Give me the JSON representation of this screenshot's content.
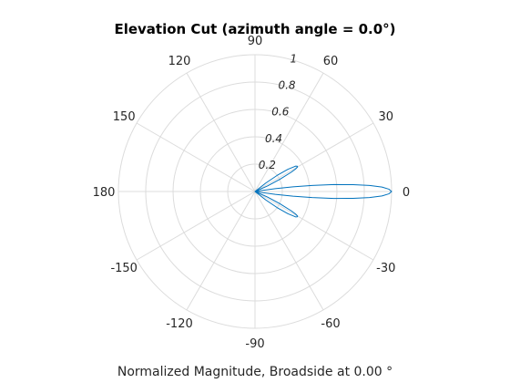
{
  "chart_data": {
    "type": "line",
    "title": "Elevation Cut (azimuth angle = 0.0°)",
    "xlabel": "Normalized Magnitude, Broadside at 0.00 °",
    "ylabel": "",
    "theta_zero_location": "right",
    "theta_direction": "counterclockwise",
    "rlim": [
      0,
      1
    ],
    "grid": true,
    "angular_ticks": [
      {
        "deg": 0,
        "label": "0"
      },
      {
        "deg": 30,
        "label": "30"
      },
      {
        "deg": 60,
        "label": "60"
      },
      {
        "deg": 90,
        "label": "90"
      },
      {
        "deg": 120,
        "label": "120"
      },
      {
        "deg": 150,
        "label": "150"
      },
      {
        "deg": 180,
        "label": "180"
      },
      {
        "deg": 210,
        "label": "-150"
      },
      {
        "deg": 240,
        "label": "-120"
      },
      {
        "deg": 270,
        "label": "-90"
      },
      {
        "deg": 300,
        "label": "-60"
      },
      {
        "deg": 330,
        "label": "-30"
      }
    ],
    "radial_ticks": [
      {
        "r": 0.2,
        "label": "0.2"
      },
      {
        "r": 0.4,
        "label": "0.4"
      },
      {
        "r": 0.6,
        "label": "0.6"
      },
      {
        "r": 0.8,
        "label": "0.8"
      },
      {
        "r": 1.0,
        "label": "1"
      }
    ],
    "series": [
      {
        "color": "#0072bd",
        "points": [
          {
            "theta": -40,
            "r": 0.0
          },
          {
            "theta": -38,
            "r": 0.1
          },
          {
            "theta": -36,
            "r": 0.2
          },
          {
            "theta": -34,
            "r": 0.29
          },
          {
            "theta": -32,
            "r": 0.35
          },
          {
            "theta": -31,
            "r": 0.36
          },
          {
            "theta": -30,
            "r": 0.36
          },
          {
            "theta": -29,
            "r": 0.34
          },
          {
            "theta": -28,
            "r": 0.3
          },
          {
            "theta": -26,
            "r": 0.2
          },
          {
            "theta": -24,
            "r": 0.1
          },
          {
            "theta": -22,
            "r": 0.0
          },
          {
            "theta": -20,
            "r": 0.0
          },
          {
            "theta": -10,
            "r": 0.0
          },
          {
            "theta": -9,
            "r": 0.04
          },
          {
            "theta": -8,
            "r": 0.15
          },
          {
            "theta": -7,
            "r": 0.28
          },
          {
            "theta": -6,
            "r": 0.42
          },
          {
            "theta": -5,
            "r": 0.58
          },
          {
            "theta": -4,
            "r": 0.72
          },
          {
            "theta": -3,
            "r": 0.84
          },
          {
            "theta": -2,
            "r": 0.93
          },
          {
            "theta": -1,
            "r": 0.98
          },
          {
            "theta": 0,
            "r": 1.0
          },
          {
            "theta": 1,
            "r": 0.98
          },
          {
            "theta": 2,
            "r": 0.93
          },
          {
            "theta": 3,
            "r": 0.84
          },
          {
            "theta": 4,
            "r": 0.72
          },
          {
            "theta": 5,
            "r": 0.58
          },
          {
            "theta": 6,
            "r": 0.42
          },
          {
            "theta": 7,
            "r": 0.28
          },
          {
            "theta": 8,
            "r": 0.15
          },
          {
            "theta": 9,
            "r": 0.04
          },
          {
            "theta": 10,
            "r": 0.0
          },
          {
            "theta": 20,
            "r": 0.0
          },
          {
            "theta": 22,
            "r": 0.0
          },
          {
            "theta": 24,
            "r": 0.1
          },
          {
            "theta": 26,
            "r": 0.2
          },
          {
            "theta": 28,
            "r": 0.3
          },
          {
            "theta": 29,
            "r": 0.34
          },
          {
            "theta": 30,
            "r": 0.36
          },
          {
            "theta": 31,
            "r": 0.36
          },
          {
            "theta": 32,
            "r": 0.35
          },
          {
            "theta": 34,
            "r": 0.29
          },
          {
            "theta": 36,
            "r": 0.2
          },
          {
            "theta": 38,
            "r": 0.1
          },
          {
            "theta": 40,
            "r": 0.0
          }
        ]
      }
    ]
  }
}
